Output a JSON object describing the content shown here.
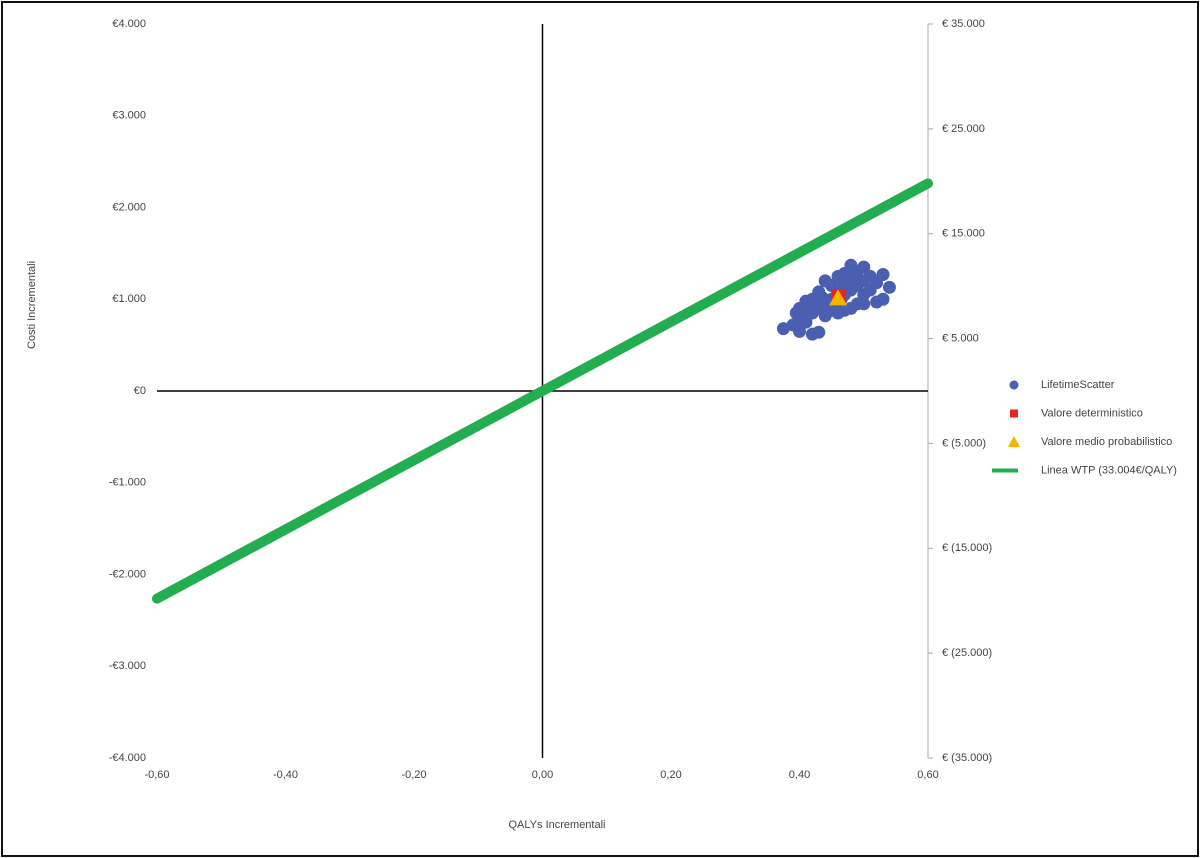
{
  "chart_data": {
    "type": "scatter",
    "y_label": "Costi Incrementali",
    "x_label": "QALYs  Incrementali",
    "xlim": [
      -0.6,
      0.6
    ],
    "xticks": [
      {
        "value": -0.6,
        "label": "-0,60"
      },
      {
        "value": -0.4,
        "label": "-0,40"
      },
      {
        "value": -0.2,
        "label": "-0,20"
      },
      {
        "value": 0,
        "label": "0,00"
      },
      {
        "value": 0.2,
        "label": "0,20"
      },
      {
        "value": 0.4,
        "label": "0,40"
      },
      {
        "value": 0.6,
        "label": "0,60"
      }
    ],
    "ylim": [
      -4000,
      4000
    ],
    "yticks": [
      {
        "value": 4000,
        "label": "€4.000"
      },
      {
        "value": 3000,
        "label": "€3.000"
      },
      {
        "value": 2000,
        "label": "€2.000"
      },
      {
        "value": 1000,
        "label": "€1.000"
      },
      {
        "value": 0,
        "label": "€0"
      },
      {
        "value": -1000,
        "label": "-€1.000"
      },
      {
        "value": -2000,
        "label": "-€2.000"
      },
      {
        "value": -3000,
        "label": "-€3.000"
      },
      {
        "value": -4000,
        "label": "-€4.000"
      }
    ],
    "y2lim": [
      -35000,
      35000
    ],
    "y2ticks": [
      {
        "value": 35000,
        "label": "€ 35.000"
      },
      {
        "value": 25000,
        "label": "€ 25.000"
      },
      {
        "value": 15000,
        "label": "€ 15.000"
      },
      {
        "value": 5000,
        "label": "€ 5.000"
      },
      {
        "value": -5000,
        "label": "€ (5.000)"
      },
      {
        "value": -15000,
        "label": "€ (15.000)"
      },
      {
        "value": -25000,
        "label": "€ (25.000)"
      },
      {
        "value": -35000,
        "label": "€ (35.000)"
      }
    ],
    "legend": "right",
    "series": [
      {
        "name": "LifetimeScatter",
        "color": "#4a5fb0",
        "marker": "circle",
        "x": [
          0.375,
          0.39,
          0.4,
          0.42,
          0.43,
          0.395,
          0.4,
          0.41,
          0.42,
          0.43,
          0.44,
          0.45,
          0.46,
          0.47,
          0.48,
          0.49,
          0.5,
          0.51,
          0.52,
          0.53,
          0.54,
          0.52,
          0.5,
          0.49,
          0.48,
          0.47,
          0.46,
          0.45,
          0.44,
          0.43,
          0.42,
          0.41,
          0.4,
          0.44,
          0.45,
          0.46,
          0.47,
          0.48,
          0.49,
          0.5,
          0.51,
          0.5,
          0.47,
          0.455,
          0.435,
          0.425,
          0.41,
          0.53,
          0.485,
          0.465
        ],
        "values": [
          680,
          720,
          650,
          620,
          640,
          850,
          900,
          980,
          1000,
          1080,
          1200,
          1150,
          1250,
          1280,
          1370,
          1300,
          1350,
          1250,
          1180,
          1270,
          1130,
          970,
          1050,
          950,
          900,
          880,
          850,
          880,
          820,
          900,
          850,
          750,
          780,
          950,
          1000,
          1100,
          1050,
          1100,
          1150,
          1200,
          1100,
          950,
          1180,
          950,
          1020,
          930,
          870,
          1000,
          1220,
          1000
        ]
      },
      {
        "name": "Valore deterministico",
        "color": "#e52521",
        "marker": "square",
        "x": [
          0.46
        ],
        "values": [
          1030
        ]
      },
      {
        "name": "Valore medio probabilistico",
        "color": "#f5b400",
        "marker": "triangle",
        "x": [
          0.46
        ],
        "values": [
          1010
        ]
      },
      {
        "name": "Linea WTP (33.004€/QALY)",
        "color": "#22ad4e",
        "marker": "line",
        "axis": "y2",
        "x": [
          -0.6,
          0.6
        ],
        "values": [
          -19802.4,
          19802.4
        ]
      }
    ]
  }
}
